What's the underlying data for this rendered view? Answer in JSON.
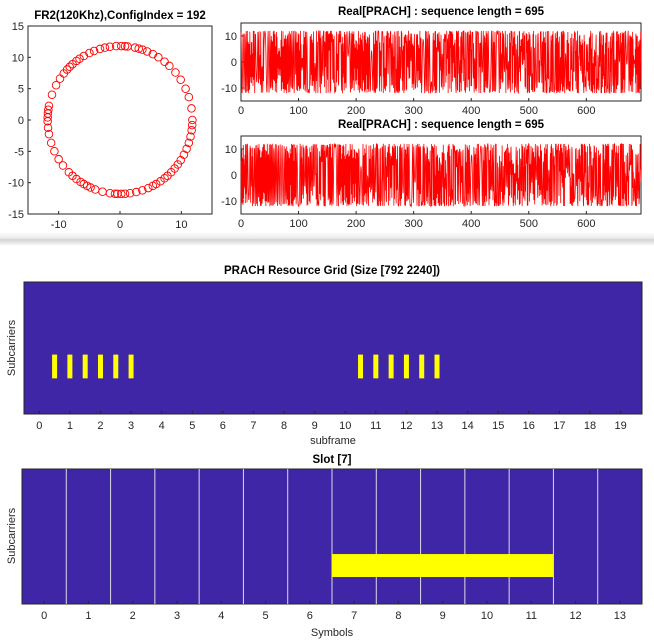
{
  "colors": {
    "signal": "#ff0000",
    "grid_background": "#3f26a6",
    "highlight": "#ffff00",
    "slot_divider": "#d9d9e6",
    "axes": "#262626"
  },
  "chart_data": [
    {
      "id": "constellation",
      "type": "scatter",
      "title": "FR2(120Khz),ConfigIndex = 192",
      "xlim": [
        -15,
        15
      ],
      "ylim": [
        -15,
        15
      ],
      "xticks": [
        -10,
        0,
        10
      ],
      "yticks": [
        -15,
        -10,
        -5,
        0,
        5,
        10,
        15
      ],
      "marker": "open-circle",
      "points_description": "Zadoff-Chu sequence samples lying on a circle",
      "radius": 11.8,
      "n_points": 139,
      "point_angles_deg": [
        0,
        9,
        18,
        25,
        33,
        40,
        47,
        52,
        58,
        63,
        68,
        72,
        75,
        78,
        84,
        86,
        89,
        93,
        98,
        102,
        106,
        111,
        115,
        120,
        124,
        127,
        131,
        134,
        137,
        141,
        146,
        152,
        160,
        169,
        172,
        175,
        178,
        181,
        186,
        191,
        198,
        205,
        212,
        218,
        225,
        229,
        233,
        237,
        240,
        243,
        246,
        250,
        256,
        262,
        266,
        268,
        271,
        274,
        278,
        283,
        288,
        293,
        297,
        300,
        304,
        308,
        311,
        315,
        319,
        323,
        327,
        332,
        337,
        342,
        347,
        352,
        356
      ]
    },
    {
      "id": "prach-real-1",
      "type": "line",
      "title": "Real[PRACH] : sequence length = 695",
      "xlim": [
        0,
        695
      ],
      "ylim": [
        -15,
        15
      ],
      "xticks": [
        0,
        100,
        200,
        300,
        400,
        500,
        600
      ],
      "yticks": [
        -10,
        0,
        10
      ],
      "amplitude": 12,
      "burst_centers": [
        40,
        150,
        270,
        380,
        500,
        610
      ]
    },
    {
      "id": "prach-real-2",
      "type": "line",
      "title": "Real[PRACH] : sequence length = 695",
      "xlim": [
        0,
        695
      ],
      "ylim": [
        -15,
        15
      ],
      "xticks": [
        0,
        100,
        200,
        300,
        400,
        500,
        600
      ],
      "yticks": [
        -10,
        0,
        10
      ],
      "amplitude": 12,
      "burst_centers": [
        20,
        130,
        250,
        350,
        470,
        580,
        690
      ]
    },
    {
      "id": "resource-grid",
      "type": "heatmap",
      "title": "PRACH Resource Grid (Size [792 2240])",
      "xlabel": "subframe",
      "ylabel": "Subcarriers",
      "xlim": [
        -0.5,
        19.7
      ],
      "xticks": [
        0,
        1,
        2,
        3,
        4,
        5,
        6,
        7,
        8,
        9,
        10,
        11,
        12,
        13,
        14,
        15,
        16,
        17,
        18,
        19
      ],
      "grid_size": [
        792,
        2240
      ],
      "occupied_row_range": [
        0.27,
        0.45
      ],
      "occupied_subframes": [
        0.5,
        1.0,
        1.5,
        2.0,
        2.5,
        3.0,
        10.5,
        11.0,
        11.5,
        12.0,
        12.5,
        13.0
      ]
    },
    {
      "id": "slot-grid",
      "type": "heatmap",
      "title": "Slot [7]",
      "xlabel": "Symbols",
      "ylabel": "Subcarriers",
      "xlim": [
        -0.5,
        13.5
      ],
      "xticks": [
        0,
        1,
        2,
        3,
        4,
        5,
        6,
        7,
        8,
        9,
        10,
        11,
        12,
        13
      ],
      "slot_index": 7,
      "occupied_symbols": [
        7,
        11
      ],
      "occupied_row_range": [
        0.2,
        0.37
      ]
    }
  ]
}
